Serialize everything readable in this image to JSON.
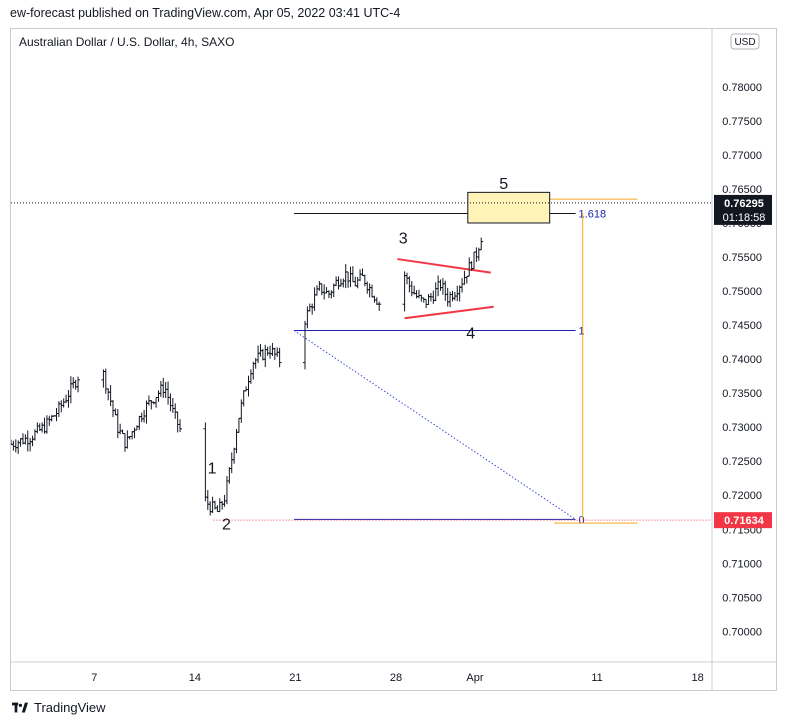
{
  "header": {
    "publisher_line": "ew-forecast published on TradingView.com, Apr 05, 2022 03:41 UTC-4"
  },
  "footer": {
    "brand": "TradingView"
  },
  "chart_data": {
    "type": "candlestick",
    "title": "Australian Dollar / U.S. Dollar, 4h, SAXO",
    "currency_label": "USD",
    "ylim": [
      0.6955,
      0.7885
    ],
    "y_ticks": [
      "0.78000",
      "0.77500",
      "0.77000",
      "0.76500",
      "0.76000",
      "0.75500",
      "0.75000",
      "0.74500",
      "0.74000",
      "0.73500",
      "0.73000",
      "0.72500",
      "0.72000",
      "0.71500",
      "0.71000",
      "0.70500",
      "0.70000"
    ],
    "x_ticks": [
      {
        "label": "7",
        "day": 7
      },
      {
        "label": "14",
        "day": 14
      },
      {
        "label": "21",
        "day": 21
      },
      {
        "label": "28",
        "day": 28
      },
      {
        "label": "Apr",
        "day": 33.5
      },
      {
        "label": "11",
        "day": 42
      },
      {
        "label": "18",
        "day": 49
      }
    ],
    "xlim": [
      1.2,
      50
    ],
    "price_anchors": [
      [
        1.2,
        0.7275
      ],
      [
        2.5,
        0.7285
      ],
      [
        3.5,
        0.73
      ],
      [
        4.5,
        0.7325
      ],
      [
        5.5,
        0.736
      ],
      [
        6.5,
        0.74
      ],
      [
        6.9,
        0.743
      ],
      [
        7.4,
        0.7395
      ],
      [
        8.0,
        0.735
      ],
      [
        8.6,
        0.73
      ],
      [
        9.2,
        0.7275
      ],
      [
        9.9,
        0.7305
      ],
      [
        10.6,
        0.733
      ],
      [
        11.2,
        0.7345
      ],
      [
        11.9,
        0.736
      ],
      [
        12.5,
        0.732
      ],
      [
        13.1,
        0.729
      ],
      [
        13.7,
        0.7255
      ],
      [
        14.3,
        0.7205
      ],
      [
        15.0,
        0.7185
      ],
      [
        15.6,
        0.7175
      ],
      [
        16.1,
        0.7198
      ],
      [
        16.5,
        0.7245
      ],
      [
        17.0,
        0.731
      ],
      [
        17.5,
        0.7355
      ],
      [
        18.0,
        0.7395
      ],
      [
        18.6,
        0.7405
      ],
      [
        19.2,
        0.7415
      ],
      [
        19.8,
        0.74
      ],
      [
        20.5,
        0.7385
      ],
      [
        21.1,
        0.7415
      ],
      [
        21.6,
        0.7455
      ],
      [
        22.1,
        0.748
      ],
      [
        22.7,
        0.7505
      ],
      [
        23.3,
        0.7495
      ],
      [
        23.9,
        0.7515
      ],
      [
        24.5,
        0.7525
      ],
      [
        25.1,
        0.751
      ],
      [
        25.7,
        0.752
      ],
      [
        26.3,
        0.75
      ],
      [
        26.9,
        0.748
      ],
      [
        27.5,
        0.75
      ],
      [
        28.0,
        0.7515
      ],
      [
        28.5,
        0.7528
      ],
      [
        29.0,
        0.7505
      ],
      [
        29.5,
        0.749
      ],
      [
        30.0,
        0.7482
      ],
      [
        30.6,
        0.7495
      ],
      [
        31.1,
        0.751
      ],
      [
        31.6,
        0.749
      ],
      [
        32.1,
        0.75
      ],
      [
        32.6,
        0.7515
      ],
      [
        33.1,
        0.7535
      ],
      [
        33.6,
        0.7555
      ],
      [
        34.0,
        0.7585
      ],
      [
        34.3,
        0.7625
      ],
      [
        34.4,
        0.763
      ]
    ],
    "fibonacci": [
      {
        "label": "1.618",
        "price": 0.7614
      },
      {
        "label": "1",
        "price": 0.7442
      },
      {
        "label": "0",
        "price": 0.71645
      }
    ],
    "wave_labels": [
      {
        "label": "1",
        "day": 15.2,
        "price": 0.7232
      },
      {
        "label": "2",
        "day": 16.2,
        "price": 0.715
      },
      {
        "label": "3",
        "day": 28.5,
        "price": 0.757
      },
      {
        "label": "4",
        "day": 33.2,
        "price": 0.743
      },
      {
        "label": "5",
        "day": 35.5,
        "price": 0.765
      }
    ],
    "target_box": {
      "day_start": 33.0,
      "day_end": 38.7,
      "price_top": 0.7645,
      "price_bottom": 0.76
    },
    "triangle": [
      {
        "from": [
          28.1,
          0.7547
        ],
        "to": [
          34.6,
          0.7527
        ]
      },
      {
        "from": [
          28.6,
          0.746
        ],
        "to": [
          34.8,
          0.7477
        ]
      }
    ],
    "projection_line": {
      "from": [
        20.9,
        0.7442
      ],
      "to": [
        40.5,
        0.71645
      ]
    },
    "last_price": {
      "value": "0.76295",
      "countdown": "01:18:58",
      "price": 0.76295
    },
    "low_price": {
      "value": "0.71634",
      "price": 0.71634
    },
    "colors": {
      "candle": "#131722",
      "fib": "#1e22aa",
      "orange": "#f5a623",
      "triangle": "#f23645",
      "box_fill": "#fff3b8",
      "last_price_bg": "#131722",
      "low_price_bg": "#f23645"
    }
  }
}
